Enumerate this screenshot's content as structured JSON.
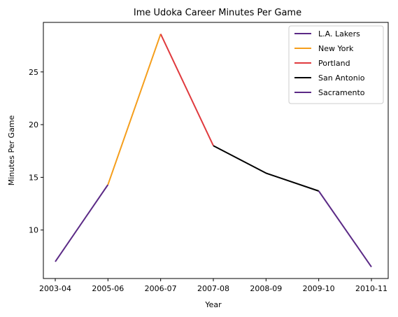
{
  "chart_data": {
    "type": "line",
    "title": "Ime Udoka Career Minutes Per Game",
    "xlabel": "Year",
    "ylabel": "Minutes Per Game",
    "categories": [
      "2003-04",
      "2005-06",
      "2006-07",
      "2007-08",
      "2008-09",
      "2009-10",
      "2010-11"
    ],
    "yticks": [
      10,
      15,
      20,
      25
    ],
    "ylim": [
      5.4,
      29.7
    ],
    "grid": false,
    "legend_position": "top-right",
    "series": [
      {
        "name": "L.A. Lakers",
        "color": "#5b2a86",
        "points": [
          [
            "2003-04",
            7.0
          ],
          [
            "2005-06",
            14.3
          ]
        ]
      },
      {
        "name": "New York",
        "color": "#f59e1c",
        "points": [
          [
            "2005-06",
            14.3
          ],
          [
            "2006-07",
            28.6
          ]
        ]
      },
      {
        "name": "Portland",
        "color": "#e03a3e",
        "points": [
          [
            "2006-07",
            28.6
          ],
          [
            "2007-08",
            18.0
          ]
        ]
      },
      {
        "name": "San Antonio",
        "color": "#000000",
        "points": [
          [
            "2007-08",
            18.0
          ],
          [
            "2008-09",
            15.4
          ],
          [
            "2009-10",
            13.7
          ]
        ]
      },
      {
        "name": "Sacramento",
        "color": "#5b2a86",
        "points": [
          [
            "2009-10",
            13.7
          ],
          [
            "2010-11",
            6.5
          ]
        ]
      }
    ]
  }
}
